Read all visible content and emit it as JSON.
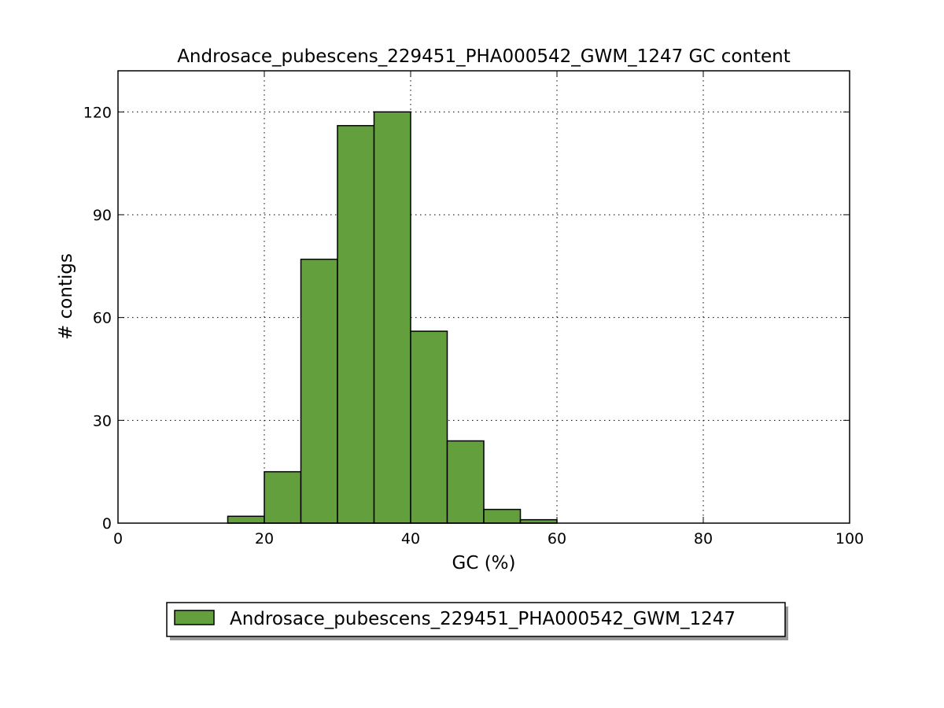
{
  "chart_data": {
    "type": "bar",
    "title": "Androsace_pubescens_229451_PHA000542_GWM_1247 GC content",
    "xlabel": "GC (%)",
    "ylabel": "# contigs",
    "xlim": [
      0,
      100
    ],
    "ylim": [
      0,
      132
    ],
    "xticks": [
      "0",
      "20",
      "40",
      "60",
      "80",
      "100"
    ],
    "yticks": [
      "0",
      "30",
      "60",
      "90",
      "120"
    ],
    "grid": true,
    "bar_color": "#639f3c",
    "bins": [
      {
        "x0": 15,
        "x1": 20,
        "value": 2
      },
      {
        "x0": 20,
        "x1": 25,
        "value": 15
      },
      {
        "x0": 25,
        "x1": 30,
        "value": 77
      },
      {
        "x0": 30,
        "x1": 35,
        "value": 116
      },
      {
        "x0": 35,
        "x1": 40,
        "value": 120
      },
      {
        "x0": 40,
        "x1": 45,
        "value": 56
      },
      {
        "x0": 45,
        "x1": 50,
        "value": 24
      },
      {
        "x0": 50,
        "x1": 55,
        "value": 4
      },
      {
        "x0": 55,
        "x1": 60,
        "value": 1
      }
    ],
    "series": [
      {
        "name": "Androsace_pubescens_229451_PHA000542_GWM_1247"
      }
    ],
    "legend_position": "bottom-center"
  }
}
